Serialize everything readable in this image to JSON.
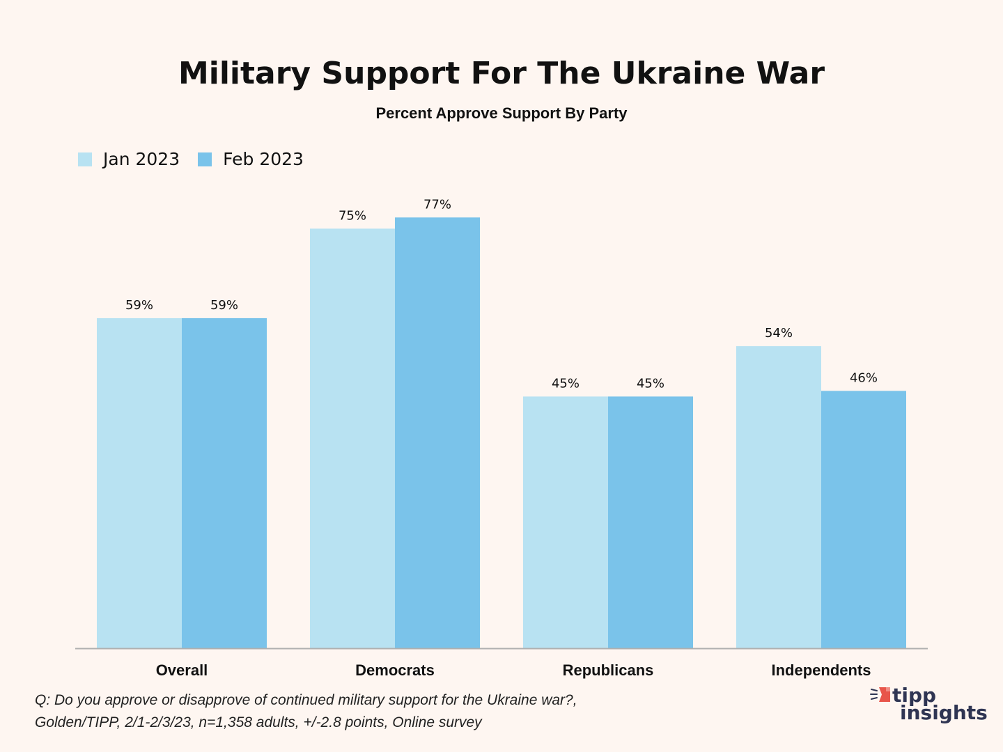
{
  "chart_data": {
    "type": "bar",
    "title": "Military Support For The Ukraine War",
    "subtitle": "Percent Approve Support By Party",
    "xlabel": "",
    "ylabel": "",
    "ylim": [
      0,
      100
    ],
    "grid": false,
    "legend_position": "top-left",
    "categories": [
      "Overall",
      "Democrats",
      "Republicans",
      "Independents"
    ],
    "series": [
      {
        "name": "Jan 2023",
        "color": "#b8e2f2",
        "values": [
          59,
          75,
          45,
          54
        ],
        "labels": [
          "59%",
          "75%",
          "45%",
          "54%"
        ]
      },
      {
        "name": "Feb 2023",
        "color": "#7ac3ea",
        "values": [
          59,
          77,
          45,
          46
        ],
        "labels": [
          "59%",
          "77%",
          "45%",
          "46%"
        ]
      }
    ]
  },
  "footnote": {
    "line1": "Q: Do you approve or disapprove of continued military support for the Ukraine war?,",
    "line2": "Golden/TIPP, 2/1-2/3/23, n=1,358 adults, +/-2.8 points, Online survey"
  },
  "logo": {
    "line1": "tipp",
    "line2": "insights",
    "accent_color": "#e8554a",
    "text_color": "#2f3553"
  },
  "colors": {
    "background": "#fef6f1",
    "axis": "#b0b0b0"
  }
}
